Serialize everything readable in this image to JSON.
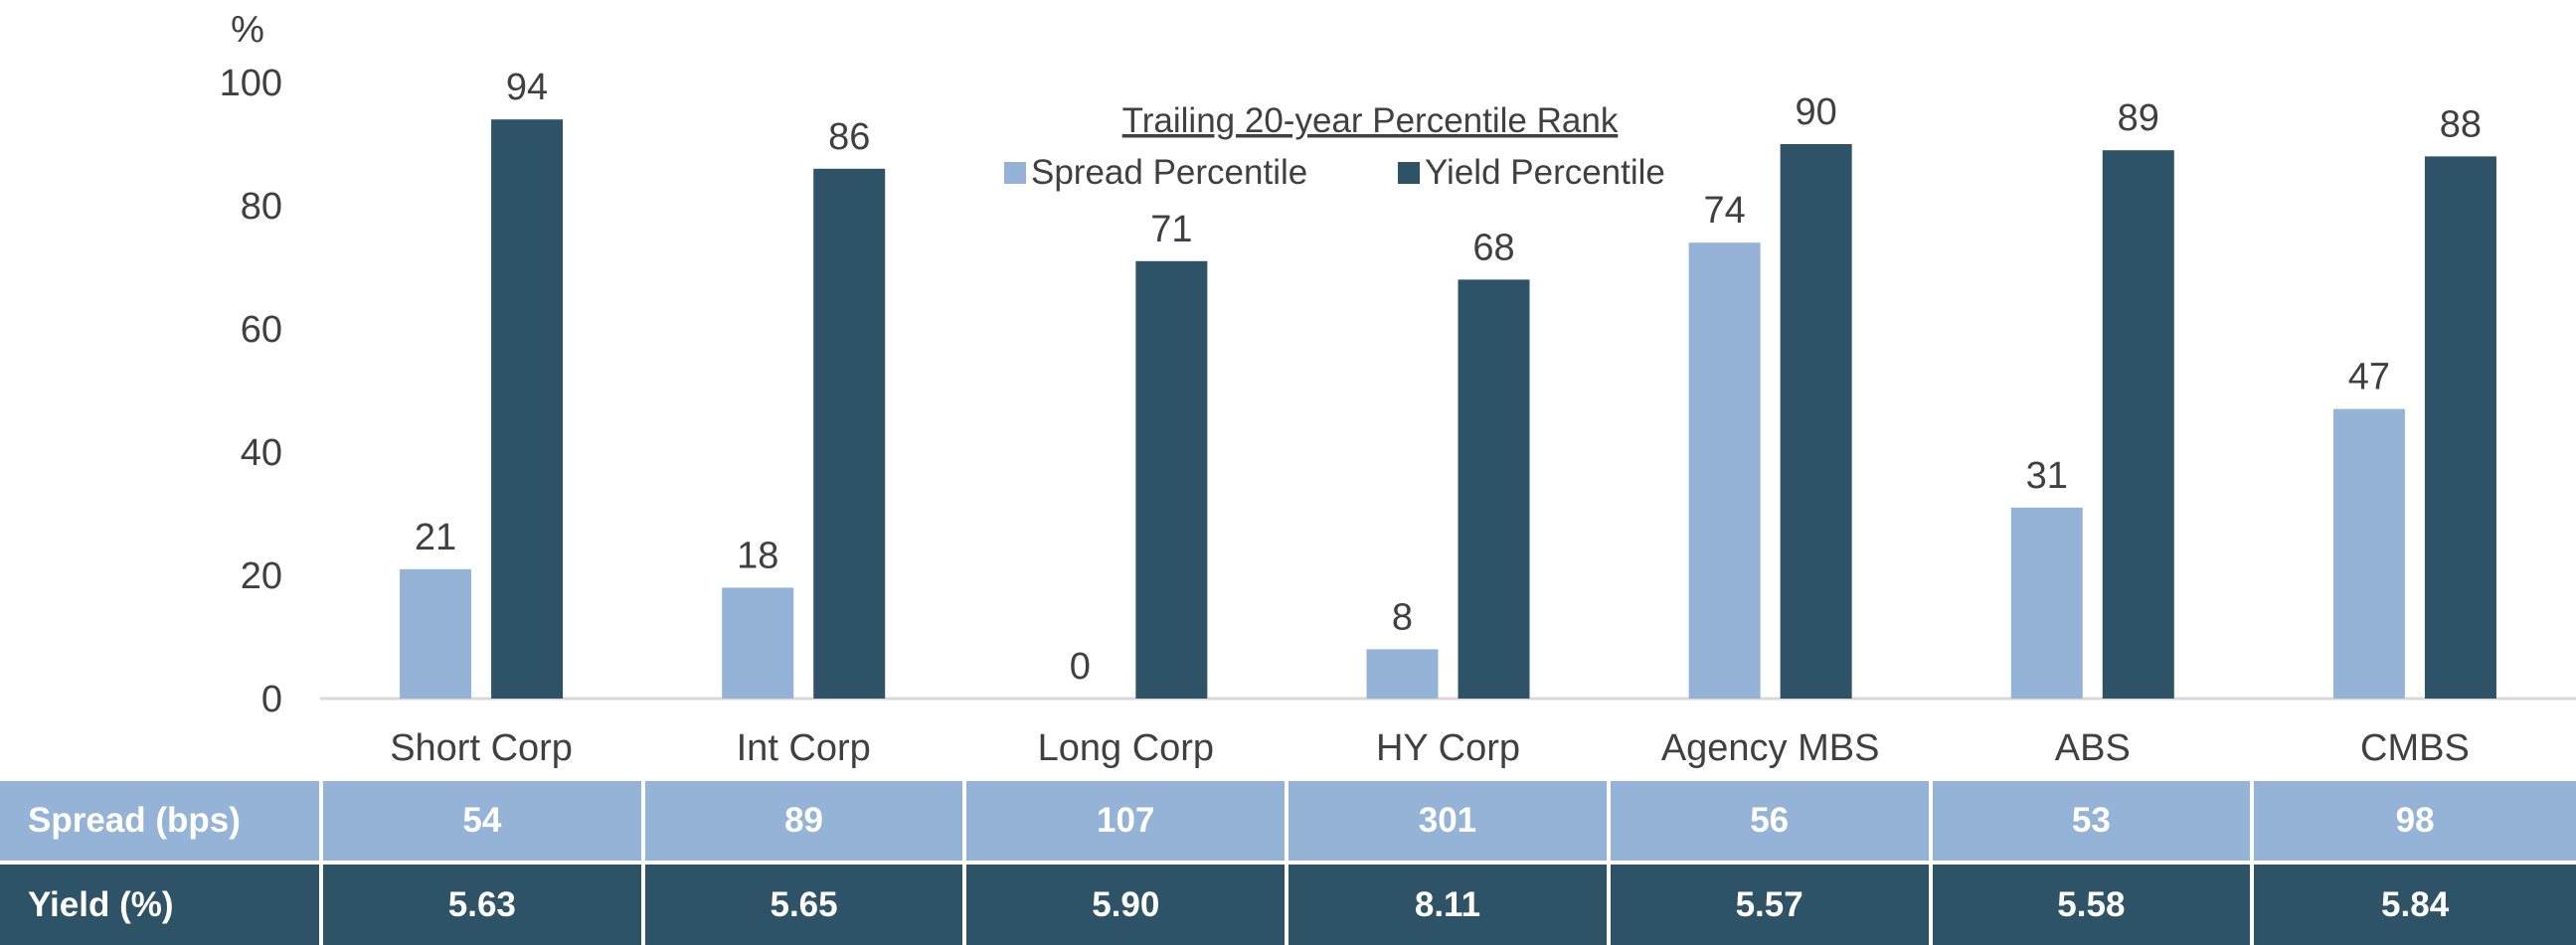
{
  "chart_data": {
    "type": "bar",
    "unit_label": "%",
    "legend_title": "Trailing 20-year Percentile Rank",
    "categories": [
      "Short Corp",
      "Int Corp",
      "Long Corp",
      "HY Corp",
      "Agency MBS",
      "ABS",
      "CMBS"
    ],
    "series": [
      {
        "name": "Spread Percentile",
        "color": "#95b3d7",
        "values": [
          21,
          18,
          0,
          8,
          74,
          31,
          47
        ]
      },
      {
        "name": "Yield Percentile",
        "color": "#2e5266",
        "values": [
          94,
          86,
          71,
          68,
          90,
          89,
          88
        ]
      }
    ],
    "ylim": [
      0,
      100
    ],
    "yticks": [
      0,
      20,
      40,
      60,
      80,
      100
    ],
    "grid": false,
    "legend_position": "top-center"
  },
  "table": {
    "rows": [
      {
        "label": "Spread (bps)",
        "values": [
          "54",
          "89",
          "107",
          "301",
          "56",
          "53",
          "98"
        ]
      },
      {
        "label": "Yield (%)",
        "values": [
          "5.63",
          "5.65",
          "5.90",
          "8.11",
          "5.57",
          "5.58",
          "5.84"
        ]
      }
    ]
  }
}
